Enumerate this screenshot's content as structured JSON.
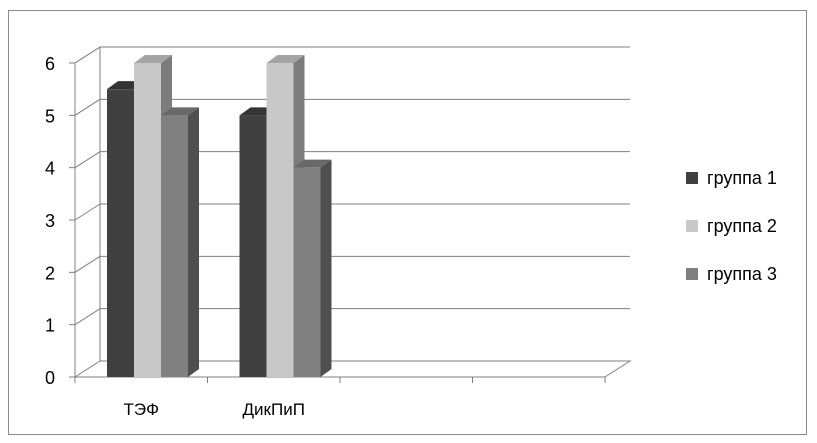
{
  "chart_data": {
    "type": "bar",
    "categories": [
      "ТЭФ",
      "ДикПиП",
      "",
      ""
    ],
    "series": [
      {
        "name": "группа 1",
        "values": [
          5.5,
          5,
          null,
          null
        ],
        "color": "#404040"
      },
      {
        "name": "группа 2",
        "values": [
          6,
          6,
          null,
          null
        ],
        "color": "#c8c8c8"
      },
      {
        "name": "группа 3",
        "values": [
          5,
          4,
          null,
          null
        ],
        "color": "#808080"
      }
    ],
    "yticks": [
      0,
      1,
      2,
      3,
      4,
      5,
      6
    ],
    "ylim": [
      0,
      6
    ],
    "grid": true,
    "legend_position": "right",
    "style": "3d-column"
  }
}
